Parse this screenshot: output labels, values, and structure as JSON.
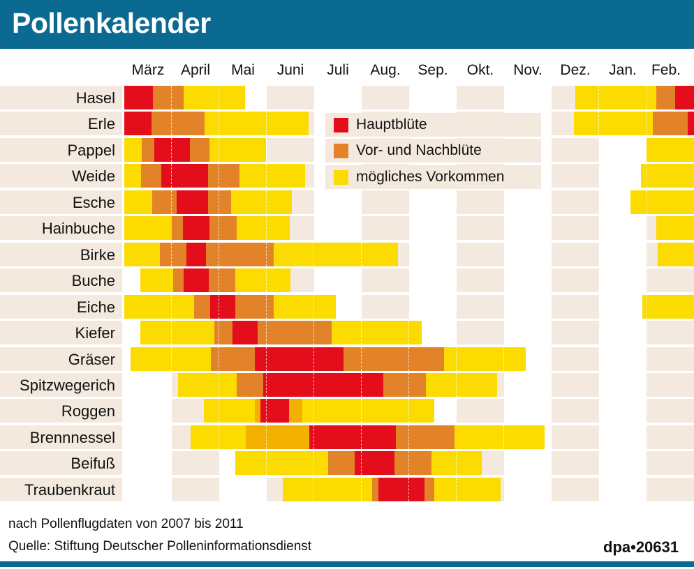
{
  "title": "Pollenkalender",
  "notes": {
    "period": "nach Pollenflugdaten von 2007 bis 2011",
    "source": "Quelle: Stiftung Deutscher Polleninformationsdienst",
    "credit": "dpa•20631"
  },
  "colors": {
    "header": "#0b6a92",
    "hauptbluete": "#e30d1b",
    "vor_nachbluete": "#e2832a",
    "vor_nachbluete_light": "#f2b100",
    "moeglich": "#fbdb00",
    "background": "#f3e9de"
  },
  "chart_data": {
    "type": "bar",
    "orientation": "horizontal-range",
    "title": "Pollenkalender",
    "months": [
      "März",
      "April",
      "Mai",
      "Juni",
      "Juli",
      "Aug.",
      "Sep.",
      "Okt.",
      "Nov.",
      "Dez.",
      "Jan.",
      "Feb."
    ],
    "x_unit": "months from start of März (0) to end of Feb. (12)",
    "xlim": [
      0,
      12
    ],
    "legend": {
      "placement": "top-center",
      "items": [
        {
          "key": "hauptbluete",
          "label": "Hauptblüte"
        },
        {
          "key": "vor_nachbluete",
          "label": "Vor- und Nachblüte"
        },
        {
          "key": "moeglich",
          "label": "mögliches Vorkommen"
        }
      ]
    },
    "categories": [
      "Hasel",
      "Erle",
      "Pappel",
      "Weide",
      "Esche",
      "Hainbuche",
      "Birke",
      "Buche",
      "Eiche",
      "Kiefer",
      "Gräser",
      "Spitzwegerich",
      "Roggen",
      "Brennnessel",
      "Beifuß",
      "Traubenkraut"
    ],
    "series": [
      {
        "plant": "Hasel",
        "segments": [
          [
            "hauptbluete",
            0,
            0.6
          ],
          [
            "vor_nachbluete",
            0.6,
            1.25
          ],
          [
            "moeglich",
            1.25,
            2.55
          ],
          [
            "moeglich",
            9.5,
            11.2
          ],
          [
            "vor_nachbluete",
            11.2,
            11.6
          ],
          [
            "hauptbluete",
            11.6,
            12
          ]
        ]
      },
      {
        "plant": "Erle",
        "segments": [
          [
            "hauptbluete",
            0,
            0.57
          ],
          [
            "vor_nachbluete",
            0.57,
            1.69
          ],
          [
            "moeglich",
            1.69,
            3.88
          ],
          [
            "moeglich",
            9.47,
            11.13
          ],
          [
            "vor_nachbluete",
            11.13,
            11.87
          ],
          [
            "hauptbluete",
            11.87,
            12
          ]
        ]
      },
      {
        "plant": "Pappel",
        "segments": [
          [
            "moeglich",
            0,
            0.37
          ],
          [
            "vor_nachbluete",
            0.37,
            0.63
          ],
          [
            "hauptbluete",
            0.63,
            1.38
          ],
          [
            "vor_nachbluete",
            1.38,
            1.79
          ],
          [
            "moeglich",
            1.79,
            2.99
          ],
          [
            "moeglich",
            11.0,
            12
          ]
        ]
      },
      {
        "plant": "Weide",
        "segments": [
          [
            "moeglich",
            0,
            0.35
          ],
          [
            "vor_nachbluete",
            0.35,
            0.78
          ],
          [
            "hauptbluete",
            0.78,
            1.76
          ],
          [
            "vor_nachbluete",
            1.76,
            2.43
          ],
          [
            "moeglich",
            2.43,
            3.81
          ],
          [
            "moeglich",
            10.88,
            12
          ]
        ]
      },
      {
        "plant": "Esche",
        "segments": [
          [
            "moeglich",
            0,
            0.59
          ],
          [
            "vor_nachbluete",
            0.59,
            1.1
          ],
          [
            "hauptbluete",
            1.1,
            1.76
          ],
          [
            "vor_nachbluete",
            1.76,
            2.25
          ],
          [
            "moeglich",
            2.25,
            3.53
          ],
          [
            "moeglich",
            10.66,
            12
          ]
        ]
      },
      {
        "plant": "Hainbuche",
        "segments": [
          [
            "moeglich",
            0,
            1.0
          ],
          [
            "vor_nachbluete",
            1.0,
            1.24
          ],
          [
            "hauptbluete",
            1.24,
            1.79
          ],
          [
            "vor_nachbluete",
            1.79,
            2.37
          ],
          [
            "moeglich",
            2.37,
            3.49
          ],
          [
            "moeglich",
            11.2,
            12
          ]
        ]
      },
      {
        "plant": "Birke",
        "segments": [
          [
            "moeglich",
            0,
            0.75
          ],
          [
            "vor_nachbluete",
            0.75,
            1.31
          ],
          [
            "hauptbluete",
            1.31,
            1.72
          ],
          [
            "vor_nachbluete",
            1.72,
            3.15
          ],
          [
            "moeglich",
            3.15,
            5.76
          ],
          [
            "moeglich",
            11.24,
            12
          ]
        ]
      },
      {
        "plant": "Buche",
        "segments": [
          [
            "moeglich",
            0.34,
            1.03
          ],
          [
            "vor_nachbluete",
            1.03,
            1.25
          ],
          [
            "hauptbluete",
            1.25,
            1.78
          ],
          [
            "vor_nachbluete",
            1.78,
            2.34
          ],
          [
            "moeglich",
            2.34,
            3.5
          ]
        ]
      },
      {
        "plant": "Eiche",
        "segments": [
          [
            "moeglich",
            0,
            1.47
          ],
          [
            "vor_nachbluete",
            1.47,
            1.81
          ],
          [
            "hauptbluete",
            1.81,
            2.34
          ],
          [
            "vor_nachbluete",
            2.34,
            3.15
          ],
          [
            "moeglich",
            3.15,
            4.46
          ],
          [
            "moeglich",
            10.91,
            12
          ]
        ]
      },
      {
        "plant": "Kiefer",
        "segments": [
          [
            "moeglich",
            0.34,
            1.9
          ],
          [
            "vor_nachbluete",
            1.9,
            2.28
          ],
          [
            "hauptbluete",
            2.28,
            2.81
          ],
          [
            "vor_nachbluete",
            2.81,
            4.37
          ],
          [
            "moeglich",
            4.37,
            6.26
          ]
        ]
      },
      {
        "plant": "Gräser",
        "segments": [
          [
            "moeglich",
            0.13,
            1.82
          ],
          [
            "vor_nachbluete",
            1.82,
            2.75
          ],
          [
            "hauptbluete",
            2.75,
            4.62
          ],
          [
            "vor_nachbluete",
            4.62,
            6.74
          ],
          [
            "moeglich",
            6.74,
            8.46
          ]
        ]
      },
      {
        "plant": "Spitzwegerich",
        "segments": [
          [
            "moeglich",
            1.13,
            2.37
          ],
          [
            "vor_nachbluete",
            2.37,
            2.93
          ],
          [
            "hauptbluete",
            2.93,
            5.46
          ],
          [
            "vor_nachbluete",
            5.46,
            6.35
          ],
          [
            "moeglich",
            6.35,
            7.85
          ]
        ]
      },
      {
        "plant": "Roggen",
        "segments": [
          [
            "moeglich",
            1.68,
            2.75
          ],
          [
            "vor_nachbluete_light",
            2.75,
            2.87
          ],
          [
            "hauptbluete",
            2.87,
            3.47
          ],
          [
            "vor_nachbluete_light",
            3.47,
            3.75
          ],
          [
            "moeglich",
            3.75,
            6.53
          ]
        ]
      },
      {
        "plant": "Brennnessel",
        "segments": [
          [
            "moeglich",
            1.4,
            2.56
          ],
          [
            "vor_nachbluete_light",
            2.56,
            3.9
          ],
          [
            "hauptbluete",
            3.9,
            5.72
          ],
          [
            "vor_nachbluete",
            5.72,
            6.96
          ],
          [
            "moeglich",
            6.96,
            8.85
          ]
        ]
      },
      {
        "plant": "Beifuß",
        "segments": [
          [
            "moeglich",
            2.34,
            4.29
          ],
          [
            "vor_nachbluete",
            4.29,
            4.85
          ],
          [
            "hauptbluete",
            4.85,
            5.69
          ],
          [
            "vor_nachbluete",
            5.69,
            6.47
          ],
          [
            "moeglich",
            6.47,
            7.53
          ]
        ]
      },
      {
        "plant": "Traubenkraut",
        "segments": [
          [
            "moeglich",
            3.34,
            5.22
          ],
          [
            "vor_nachbluete",
            5.22,
            5.35
          ],
          [
            "hauptbluete",
            5.35,
            6.32
          ],
          [
            "vor_nachbluete",
            6.32,
            6.53
          ],
          [
            "moeglich",
            6.53,
            7.93
          ]
        ]
      }
    ]
  }
}
